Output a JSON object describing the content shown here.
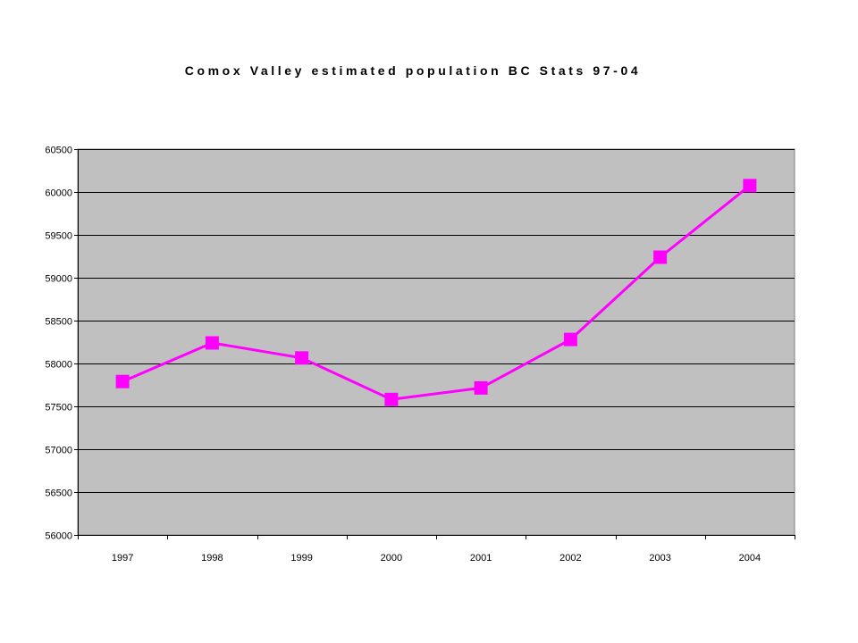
{
  "chart_data": {
    "type": "line",
    "title": "Comox Valley estimated population BC Stats 97-04",
    "xlabel": "",
    "ylabel": "",
    "categories": [
      "1997",
      "1998",
      "1999",
      "2000",
      "2001",
      "2002",
      "2003",
      "2004"
    ],
    "series": [
      {
        "values": [
          57790,
          58240,
          58065,
          57580,
          57715,
          58280,
          59240,
          60075
        ]
      }
    ],
    "ylim": [
      56000,
      60500
    ],
    "ytick_step": 500,
    "yticks": [
      "56000",
      "56500",
      "57000",
      "57500",
      "58000",
      "58500",
      "59000",
      "59500",
      "60000",
      "60500"
    ],
    "grid": "horizontal",
    "legend": "none",
    "colors": {
      "plot_background": "#c0c0c0",
      "series_line": "#ff00ff",
      "marker": "#ff00ff",
      "gridline": "#000000",
      "plot_border": "#808080"
    },
    "marker": "square"
  }
}
